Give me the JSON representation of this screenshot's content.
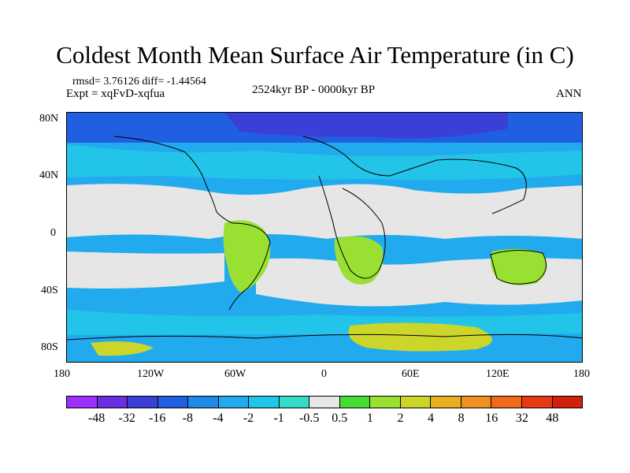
{
  "title": "Coldest Month Mean Surface Air Temperature (in C)",
  "stats_line": "rmsd= 3.76126 diff= -1.44564",
  "expt_line": "Expt = xqFvD-xqfua",
  "period": "2524kyr BP - 0000kyr BP",
  "season": "ANN",
  "map": {
    "lat_ticks": [
      "80N",
      "40N",
      "0",
      "40S",
      "80S"
    ],
    "lon_ticks": [
      "180",
      "120W",
      "60W",
      "0",
      "60E",
      "120E",
      "180"
    ]
  },
  "colorbar": {
    "labels": [
      "-48",
      "-32",
      "-16",
      "-8",
      "-4",
      "-2",
      "-1",
      "-0.5",
      "0.5",
      "1",
      "2",
      "4",
      "8",
      "16",
      "32",
      "48"
    ],
    "colors": [
      "#9b30ff",
      "#6a2ee0",
      "#3a3fd8",
      "#2060e0",
      "#1e8ae6",
      "#22aaee",
      "#22c4e8",
      "#33ddc8",
      "#e6e6e6",
      "#44dd33",
      "#99e033",
      "#ccd62a",
      "#e6b020",
      "#f0901e",
      "#f06a1a",
      "#e63a14",
      "#d0200e"
    ]
  }
}
